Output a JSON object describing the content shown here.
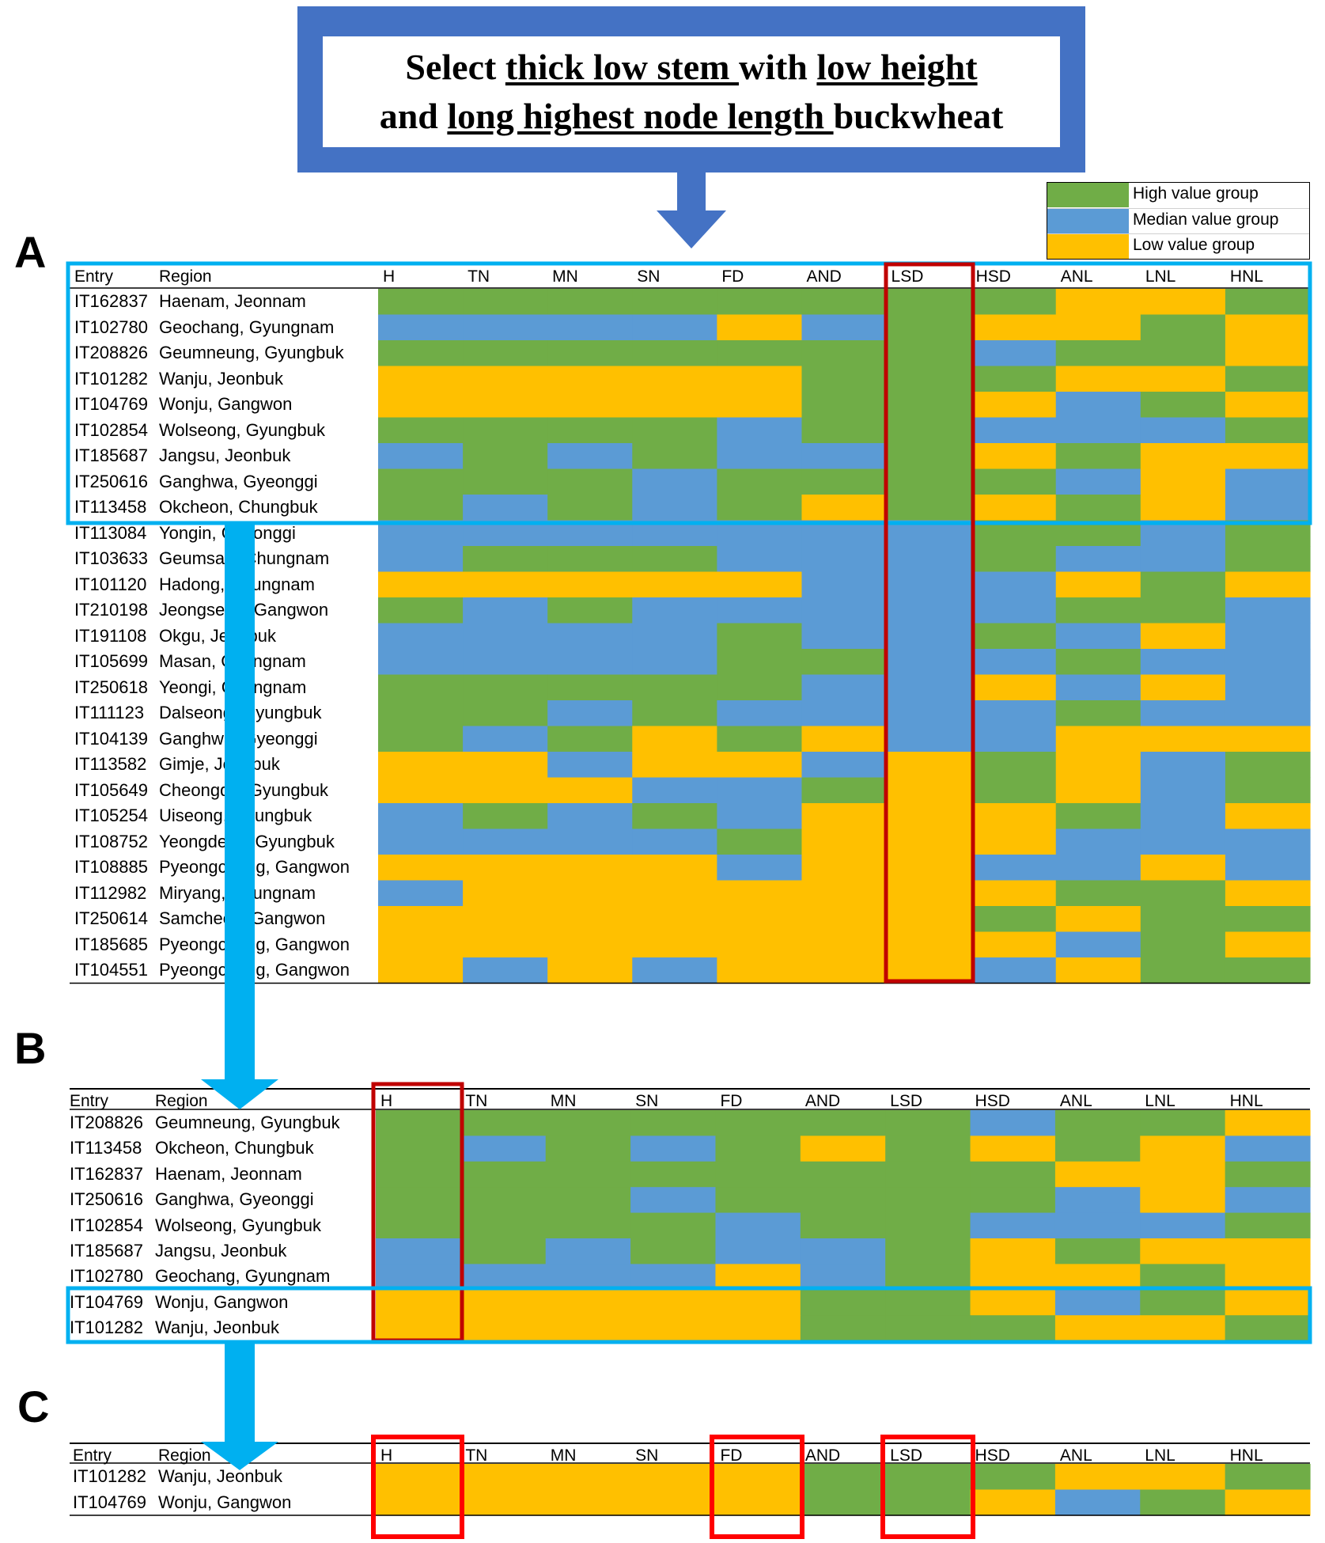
{
  "title": {
    "parts": [
      [
        {
          "t": "Select ",
          "u": false
        },
        {
          "t": "thick low stem ",
          "u": true
        },
        {
          "t": "with ",
          "u": false
        },
        {
          "t": "low height",
          "u": true
        }
      ],
      [
        {
          "t": "and ",
          "u": false
        },
        {
          "t": "long highest node length ",
          "u": true
        },
        {
          "t": "buckwheat",
          "u": false
        }
      ]
    ]
  },
  "legend": [
    {
      "label": "High value group",
      "color": "#70ad47"
    },
    {
      "label": "Median value group",
      "color": "#5b9bd5"
    },
    {
      "label": "Low value group",
      "color": "#ffc000"
    }
  ],
  "panel_labels": [
    "A",
    "B",
    "C"
  ],
  "headers": {
    "entry": "Entry",
    "region": "Region",
    "traits": [
      "H",
      "TN",
      "MN",
      "SN",
      "FD",
      "AND",
      "LSD",
      "HSD",
      "ANL",
      "LNL",
      "HNL"
    ]
  },
  "code_colors": {
    "G": "#70ad47",
    "B": "#5b9bd5",
    "Y": "#ffc000"
  },
  "panel_a": {
    "rows": [
      {
        "entry": "IT162837",
        "region": "Haenam, Jeonnam",
        "codes": "GGGGGGGGYYG"
      },
      {
        "entry": "IT102780",
        "region": "Geochang, Gyungnam",
        "codes": "BBBBYBGYYGY"
      },
      {
        "entry": "IT208826",
        "region": "Geumneung, Gyungbuk",
        "codes": "GGGGGGGBGGY"
      },
      {
        "entry": "IT101282",
        "region": "Wanju, Jeonbuk",
        "codes": "YYYYYGGGYYG"
      },
      {
        "entry": "IT104769",
        "region": "Wonju, Gangwon",
        "codes": "YYYYYGGYBGY"
      },
      {
        "entry": "IT102854",
        "region": "Wolseong, Gyungbuk",
        "codes": "GGGGBGGBBBG"
      },
      {
        "entry": "IT185687",
        "region": "Jangsu, Jeonbuk",
        "codes": "BGBGBBGYGYY"
      },
      {
        "entry": "IT250616",
        "region": "Ganghwa, Gyeonggi",
        "codes": "GGGBGGGGBYB"
      },
      {
        "entry": "IT113458",
        "region": "Okcheon, Chungbuk",
        "codes": "GBGBGYGYGYB"
      },
      {
        "entry": "IT113084",
        "region": "Yongin, Gyeonggi",
        "codes": "BBBBBBBGGBG"
      },
      {
        "entry": "IT103633",
        "region": "Geumsan, Chungnam",
        "codes": "BGGGBBBGBBG"
      },
      {
        "entry": "IT101120",
        "region": "Hadong, Gyungnam",
        "codes": "YYYYYBBBYGY"
      },
      {
        "entry": "IT210198",
        "region": "Jeongseon, Gangwon",
        "codes": "GBGBBBBBGGB"
      },
      {
        "entry": "IT191108",
        "region": "Okgu, Jeonbuk",
        "codes": "BBBBGBBGBYB"
      },
      {
        "entry": "IT105699",
        "region": "Masan, Gyungnam",
        "codes": "BBBBGGBBGBB"
      },
      {
        "entry": "IT250618",
        "region": "Yeongi, Chungnam",
        "codes": "GGGGGBBYBYB"
      },
      {
        "entry": "IT111123",
        "region": "Dalseong, Gyungbuk",
        "codes": "GGBGBBBBGBB"
      },
      {
        "entry": "IT104139",
        "region": "Ganghwa, Gyeonggi",
        "codes": "GBGYGYBBYYY"
      },
      {
        "entry": "IT113582",
        "region": "Gimje, Jeonbuk",
        "codes": "YYBYYBYGYBG"
      },
      {
        "entry": "IT105649",
        "region": "Cheongdo, Gyungbuk",
        "codes": "YYYBBGYGYBG"
      },
      {
        "entry": "IT105254",
        "region": "Uiseong, Gyungbuk",
        "codes": "BGBGBYYYGBY"
      },
      {
        "entry": "IT108752",
        "region": "Yeongdeok, Gyungbuk",
        "codes": "BBBBGYYYBBB"
      },
      {
        "entry": "IT108885",
        "region": "Pyeongchang, Gangwon",
        "codes": "YYYYBYYBBYB"
      },
      {
        "entry": "IT112982",
        "region": "Miryang, Gyungnam",
        "codes": "BYYYYYYYGGY"
      },
      {
        "entry": "IT250614",
        "region": "Samcheok, Gangwon",
        "codes": "YYYYYYYGYGG"
      },
      {
        "entry": "IT185685",
        "region": "Pyeongchang, Gangwon",
        "codes": "YYYYYYYYBGY"
      },
      {
        "entry": "IT104551",
        "region": "Pyeongchang, Gangwon",
        "codes": "YBYBYYYBYGG"
      }
    ]
  },
  "panel_b": {
    "rows": [
      {
        "entry": "IT208826",
        "region": "Geumneung, Gyungbuk",
        "codes": "GGGGGGGBGGY"
      },
      {
        "entry": "IT113458",
        "region": "Okcheon, Chungbuk",
        "codes": "GBGBGYGYGYB"
      },
      {
        "entry": "IT162837",
        "region": "Haenam, Jeonnam",
        "codes": "GGGGGGGGYYG"
      },
      {
        "entry": "IT250616",
        "region": "Ganghwa, Gyeonggi",
        "codes": "GGGBGGGGBYB"
      },
      {
        "entry": "IT102854",
        "region": "Wolseong, Gyungbuk",
        "codes": "GGGGBGGBBBG"
      },
      {
        "entry": "IT185687",
        "region": "Jangsu, Jeonbuk",
        "codes": "BGBGBBGYGYY"
      },
      {
        "entry": "IT102780",
        "region": "Geochang, Gyungnam",
        "codes": "BBBBYBGYYGY"
      },
      {
        "entry": "IT104769",
        "region": "Wonju, Gangwon",
        "codes": "YYYYYGGYBGY"
      },
      {
        "entry": "IT101282",
        "region": "Wanju, Jeonbuk",
        "codes": "YYYYYGGGYYG"
      }
    ]
  },
  "panel_c": {
    "rows": [
      {
        "entry": "IT101282",
        "region": "Wanju, Jeonbuk",
        "codes": "YYYYYGGGYYG"
      },
      {
        "entry": "IT104769",
        "region": "Wonju, Gangwon",
        "codes": "YYYYYGGYBGY"
      }
    ]
  }
}
